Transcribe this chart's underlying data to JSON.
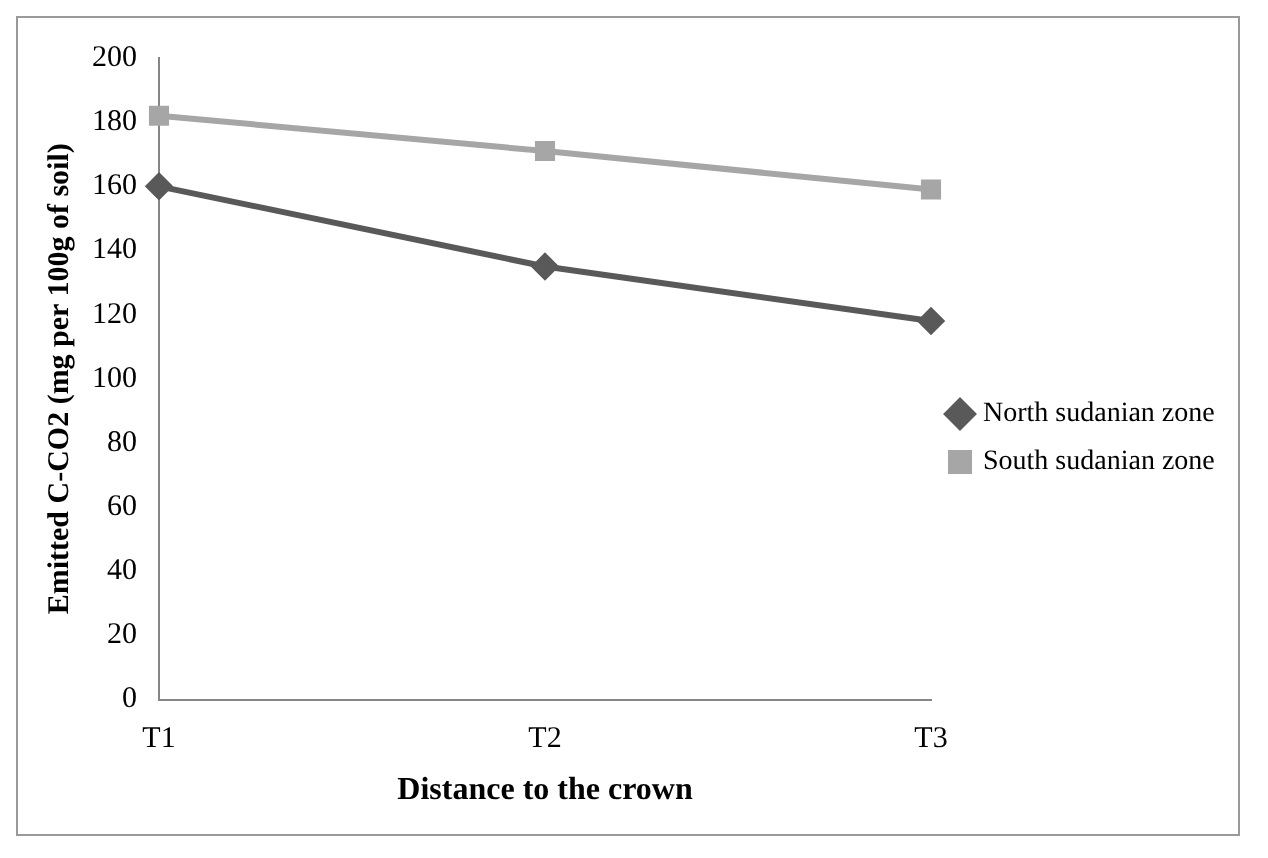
{
  "chart_data": {
    "type": "line",
    "xlabel": "Distance to the crown",
    "ylabel": "Emitted C-CO2 (mg per 100g of soil)",
    "categories": [
      "T1",
      "T2",
      "T3"
    ],
    "series": [
      {
        "name": "North sudanian zone",
        "color": "#595959",
        "values": [
          160,
          135,
          118
        ],
        "marker": "diamond"
      },
      {
        "name": "South sudanian zone",
        "color": "#a6a6a6",
        "values": [
          182,
          171,
          159
        ],
        "marker": "square"
      }
    ],
    "ylim": [
      0,
      200
    ],
    "yticks": [
      0,
      20,
      40,
      60,
      80,
      100,
      120,
      140,
      160,
      180,
      200
    ],
    "grid": false,
    "legend": "right"
  }
}
